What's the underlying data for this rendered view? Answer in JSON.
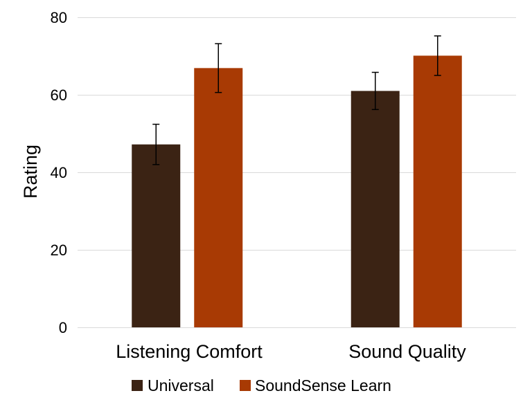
{
  "chart_data": {
    "type": "bar",
    "title": "",
    "xlabel": "",
    "ylabel": "Rating",
    "categories": [
      "Listening Comfort",
      "Sound Quality"
    ],
    "series": [
      {
        "name": "Universal",
        "values": [
          47.2,
          61.0
        ],
        "error": [
          5.2,
          4.8
        ],
        "color": "#3b2314"
      },
      {
        "name": "SoundSense Learn",
        "values": [
          66.9,
          70.1
        ],
        "error": [
          6.3,
          5.1
        ],
        "color": "#a83a04"
      }
    ],
    "ylim": [
      0,
      80
    ],
    "yticks": [
      "0",
      "20",
      "40",
      "60",
      "80"
    ],
    "grid": true,
    "error_bars": true,
    "legend_position": "bottom"
  }
}
